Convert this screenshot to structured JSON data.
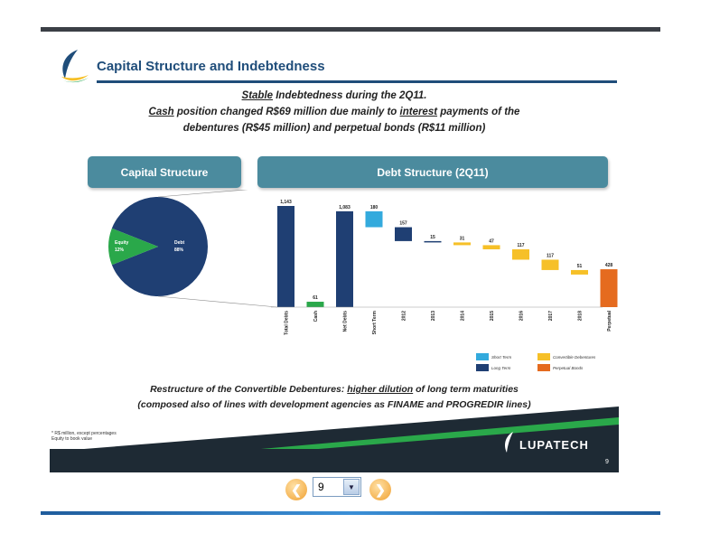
{
  "slide": {
    "title": "Capital Structure and Indebtedness",
    "sub1_a": "Stable",
    "sub1_b": " Indebtedness during the 2Q11.",
    "sub2_a": "Cash",
    "sub2_b": " position changed R$69 million due mainly to ",
    "sub2_c": "interest",
    "sub2_d": " payments of the",
    "sub3": "debentures (R$45 million) and perpetual bonds (R$11 million)",
    "capital_header": "Capital Structure",
    "debt_header": "Debt Structure (2Q11)",
    "note1_a": "Restructure of the Convertible Debentures: ",
    "note1_b": "higher dilution",
    "note1_c": " of long term maturities",
    "note2": "(composed also of lines with development agencies as FINAME and PROGREDIR lines)",
    "footnote1": "* R$ million, except percentages",
    "footnote2": "Equity to book value",
    "brand": "LUPATECH",
    "page_number": "9"
  },
  "nav": {
    "current_page": "9",
    "prev_icon": "arrow-left-icon",
    "next_icon": "arrow-right-icon"
  },
  "colors": {
    "dark_blue": "#1f3f73",
    "light_blue": "#33aadd",
    "green": "#2aa84a",
    "yellow": "#f6c028",
    "orange": "#e56b1f",
    "header": "#4b8b9e"
  },
  "chart_data": [
    {
      "type": "pie",
      "title": "Capital Structure",
      "slices": [
        {
          "label": "Debt",
          "value": 88,
          "display": "88%",
          "color": "#1f3f73"
        },
        {
          "label": "Equity",
          "value": 12,
          "display": "12%",
          "color": "#2aa84a"
        }
      ]
    },
    {
      "type": "bar",
      "title": "Debt Structure (2Q11)",
      "categories": [
        "Total Debts",
        "Cash",
        "Net Debts",
        "Short Term",
        "2012",
        "2013",
        "2014",
        "2015",
        "2016",
        "2017",
        "2018",
        "Perpetual"
      ],
      "bars": [
        {
          "label": "1,143",
          "value": 1143,
          "base": 0,
          "kind": "long"
        },
        {
          "label": "61",
          "value": 61,
          "base": 0,
          "kind": "cash"
        },
        {
          "label": "1,083",
          "value": 1083,
          "base": 0,
          "kind": "long"
        },
        {
          "label": "180",
          "value": 180,
          "base": 903,
          "kind": "short"
        },
        {
          "label": "157",
          "value": 157,
          "base": 746,
          "kind": "long"
        },
        {
          "label": "15",
          "value": 15,
          "base": 731,
          "kind": "long"
        },
        {
          "label": "31",
          "value": 31,
          "base": 700,
          "kind": "conv"
        },
        {
          "label": "47",
          "value": 47,
          "base": 653,
          "kind": "conv"
        },
        {
          "label": "117",
          "value": 117,
          "base": 536,
          "kind": "conv"
        },
        {
          "label": "117",
          "value": 117,
          "base": 419,
          "kind": "conv"
        },
        {
          "label": "51",
          "value": 51,
          "base": 368,
          "kind": "conv"
        },
        {
          "label": "428",
          "value": 428,
          "base": 0,
          "kind": "perp"
        }
      ],
      "legend": [
        {
          "label": "Short Term",
          "color": "#33aadd"
        },
        {
          "label": "Convertible Debentures",
          "color": "#f6c028"
        },
        {
          "label": "Long Term",
          "color": "#1f3f73"
        },
        {
          "label": "Perpetual Bonds",
          "color": "#e56b1f"
        }
      ],
      "ylim": [
        0,
        1143
      ]
    }
  ]
}
